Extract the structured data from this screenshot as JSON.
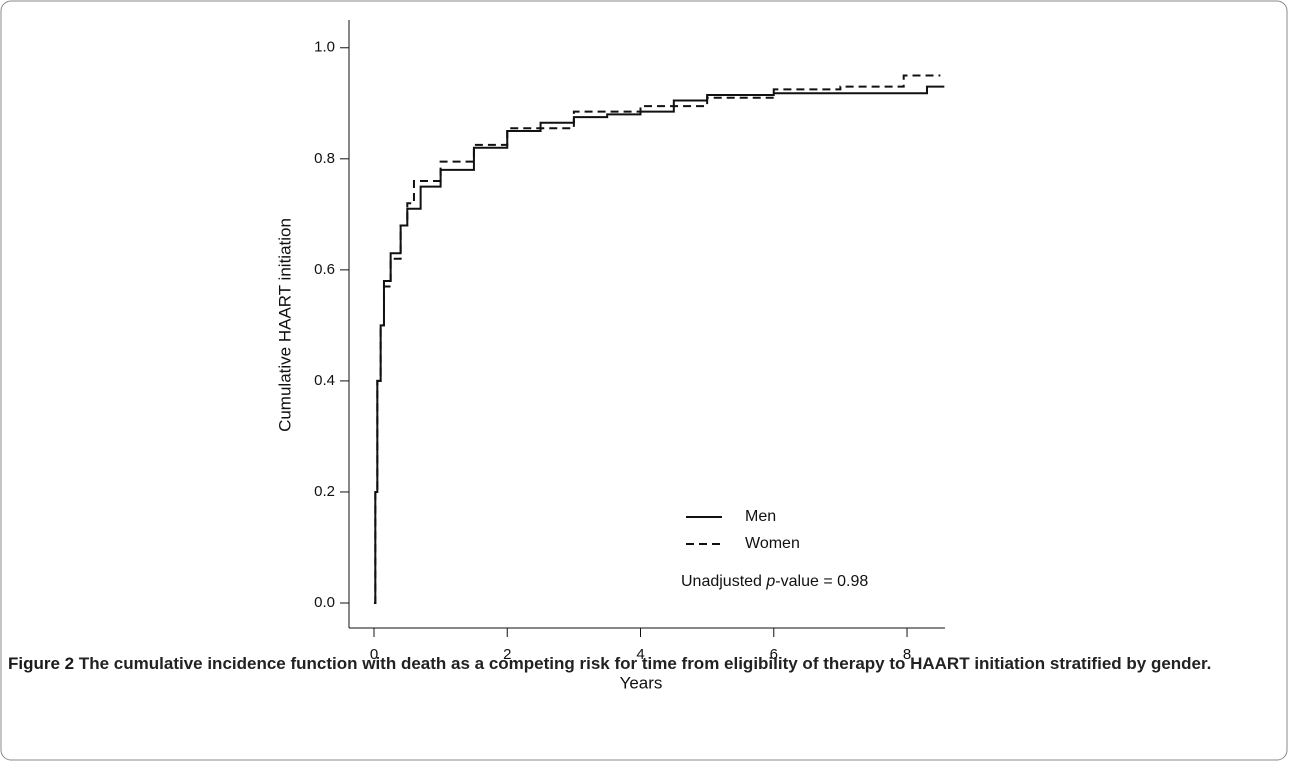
{
  "chart_data": {
    "type": "line",
    "step": true,
    "xlabel": "Years",
    "ylabel": "Cumulative HAART initiation",
    "xlim": [
      -0.375,
      8.57
    ],
    "ylim": [
      -0.045,
      1.05
    ],
    "xticks": [
      0,
      2,
      4,
      6,
      8
    ],
    "yticks": [
      {
        "value": 0,
        "label": "0.0"
      },
      {
        "value": 0.2,
        "label": "0.2"
      },
      {
        "value": 0.4,
        "label": "0.4"
      },
      {
        "value": 0.6,
        "label": "0.6"
      },
      {
        "value": 0.8,
        "label": "0.8"
      },
      {
        "value": 1,
        "label": "1.0"
      }
    ],
    "series": [
      {
        "name": "Men",
        "color": "#111111",
        "dash": false,
        "x": [
          0,
          0.02,
          0.05,
          0.1,
          0.15,
          0.25,
          0.4,
          0.5,
          0.7,
          1,
          1.5,
          2,
          2.5,
          3,
          3.5,
          4,
          4.5,
          5,
          6,
          8.3,
          8.56
        ],
        "values": [
          0,
          0.2,
          0.4,
          0.5,
          0.58,
          0.63,
          0.68,
          0.71,
          0.75,
          0.78,
          0.82,
          0.85,
          0.865,
          0.875,
          0.88,
          0.885,
          0.905,
          0.915,
          0.918,
          0.93,
          0.93
        ]
      },
      {
        "name": "Women",
        "color": "#111111",
        "dash": true,
        "x": [
          0,
          0.02,
          0.05,
          0.1,
          0.15,
          0.25,
          0.4,
          0.5,
          0.6,
          1,
          1.5,
          2,
          3,
          4,
          5,
          6,
          7,
          7.95,
          8.5
        ],
        "values": [
          0,
          0.2,
          0.4,
          0.5,
          0.57,
          0.62,
          0.68,
          0.72,
          0.76,
          0.795,
          0.825,
          0.855,
          0.885,
          0.895,
          0.91,
          0.925,
          0.93,
          0.95,
          0.95
        ]
      }
    ],
    "annotation": {
      "before": "Unadjusted ",
      "italic": "p",
      "after": "-value = 0.98"
    },
    "caption": {
      "label": "Figure 2",
      "text": "The cumulative incidence function with death as a competing risk for time from eligibility of therapy to HAART initiation stratified by gender."
    }
  }
}
